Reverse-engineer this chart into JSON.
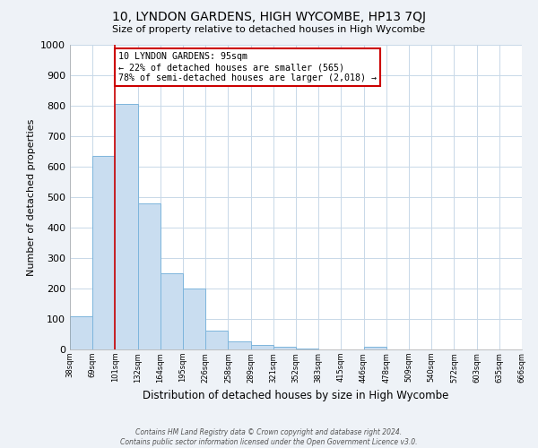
{
  "title": "10, LYNDON GARDENS, HIGH WYCOMBE, HP13 7QJ",
  "subtitle": "Size of property relative to detached houses in High Wycombe",
  "xlabel": "Distribution of detached houses by size in High Wycombe",
  "ylabel": "Number of detached properties",
  "bar_values": [
    110,
    635,
    805,
    480,
    250,
    200,
    62,
    27,
    15,
    10,
    4,
    0,
    0,
    8,
    0,
    0,
    0,
    0,
    0,
    0
  ],
  "bin_labels": [
    "38sqm",
    "69sqm",
    "101sqm",
    "132sqm",
    "164sqm",
    "195sqm",
    "226sqm",
    "258sqm",
    "289sqm",
    "321sqm",
    "352sqm",
    "383sqm",
    "415sqm",
    "446sqm",
    "478sqm",
    "509sqm",
    "540sqm",
    "572sqm",
    "603sqm",
    "635sqm",
    "666sqm"
  ],
  "bar_color": "#c9ddf0",
  "bar_edge_color": "#7db5dc",
  "vline_color": "#cc0000",
  "vline_x": 2.0,
  "annotation_text": "10 LYNDON GARDENS: 95sqm\n← 22% of detached houses are smaller (565)\n78% of semi-detached houses are larger (2,018) →",
  "annotation_box_color": "white",
  "annotation_box_edge": "#cc0000",
  "ylim": [
    0,
    1000
  ],
  "yticks": [
    0,
    100,
    200,
    300,
    400,
    500,
    600,
    700,
    800,
    900,
    1000
  ],
  "footer1": "Contains HM Land Registry data © Crown copyright and database right 2024.",
  "footer2": "Contains public sector information licensed under the Open Government Licence v3.0.",
  "background_color": "#eef2f7",
  "plot_bg_color": "#ffffff",
  "grid_color": "#c8d8e8"
}
